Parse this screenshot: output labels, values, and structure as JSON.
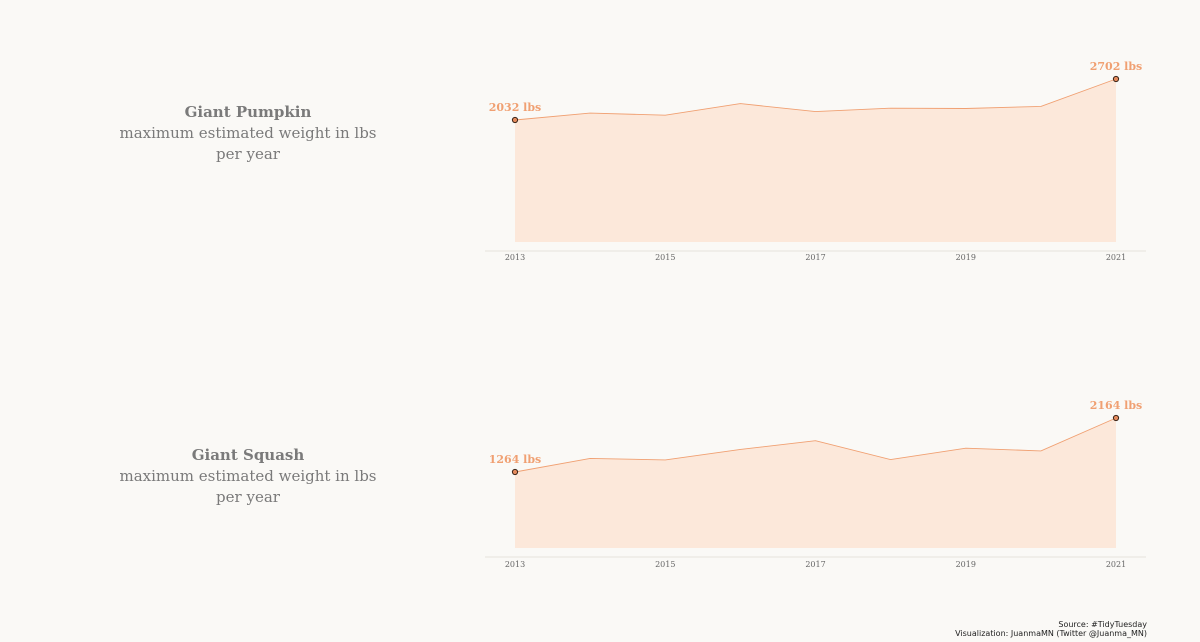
{
  "caption": {
    "source": "Source: #TidyTuesday",
    "credit": "Visualization: JuanmaMN (Twitter @Juanma_MN)"
  },
  "colors": {
    "fill": "#fce8da",
    "line": "#f0a072",
    "label": "#f0a072",
    "point": "#e48a5c"
  },
  "chart_data": [
    {
      "type": "area",
      "title_lines": [
        "Giant Pumpkin",
        "maximum estimated weight in lbs",
        "per year"
      ],
      "x": [
        2013,
        2014,
        2015,
        2016,
        2017,
        2018,
        2019,
        2020,
        2021
      ],
      "values": [
        2032,
        2145,
        2110,
        2300,
        2170,
        2225,
        2220,
        2255,
        2702
      ],
      "xticks": [
        "2013",
        "2015",
        "2017",
        "2019",
        "2021"
      ],
      "start_label": "2032 lbs",
      "end_label": "2702 lbs",
      "xlabel": "",
      "ylabel": ""
    },
    {
      "type": "area",
      "title_lines": [
        "Giant Squash",
        "maximum estimated weight in lbs",
        "per year"
      ],
      "x": [
        2013,
        2014,
        2015,
        2016,
        2017,
        2018,
        2019,
        2020,
        2021
      ],
      "values": [
        1264,
        1490,
        1465,
        1640,
        1785,
        1470,
        1660,
        1615,
        2164
      ],
      "xticks": [
        "2013",
        "2015",
        "2017",
        "2019",
        "2021"
      ],
      "start_label": "1264 lbs",
      "end_label": "2164 lbs",
      "xlabel": "",
      "ylabel": ""
    }
  ]
}
